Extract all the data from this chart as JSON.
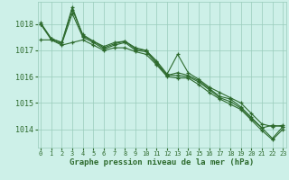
{
  "bg_color": "#cdf0e8",
  "grid_color": "#99ccbb",
  "line_color": "#2d6a2d",
  "xlabel": "Graphe pression niveau de la mer (hPa)",
  "xlabel_color": "#2d6a2d",
  "ylim": [
    1013.3,
    1018.85
  ],
  "yticks": [
    1014,
    1015,
    1016,
    1017,
    1018
  ],
  "xlim": [
    -0.3,
    23.3
  ],
  "xticks": [
    0,
    1,
    2,
    3,
    4,
    5,
    6,
    7,
    8,
    9,
    10,
    11,
    12,
    13,
    14,
    15,
    16,
    17,
    18,
    19,
    20,
    21,
    22,
    23
  ],
  "series": [
    [
      1018.0,
      1017.45,
      1017.3,
      1018.65,
      1017.55,
      1017.35,
      1017.1,
      1017.25,
      1017.35,
      1017.05,
      1017.0,
      1016.55,
      1016.05,
      1016.15,
      1016.05,
      1015.85,
      1015.55,
      1015.25,
      1015.15,
      1014.85,
      1014.45,
      1014.05,
      1014.15,
      1014.1
    ],
    [
      1018.05,
      1017.45,
      1017.3,
      1018.55,
      1017.6,
      1017.35,
      1017.15,
      1017.3,
      1017.35,
      1017.1,
      1017.0,
      1016.6,
      1016.1,
      1016.85,
      1016.15,
      1015.9,
      1015.6,
      1015.4,
      1015.2,
      1015.0,
      1014.6,
      1014.2,
      1014.1,
      1014.15
    ],
    [
      1018.0,
      1017.4,
      1017.25,
      1018.4,
      1017.5,
      1017.3,
      1017.05,
      1017.2,
      1017.3,
      1017.0,
      1016.95,
      1016.5,
      1016.05,
      1016.05,
      1016.0,
      1015.8,
      1015.5,
      1015.2,
      1015.05,
      1014.8,
      1014.4,
      1014.05,
      1013.65,
      1014.1
    ],
    [
      1017.4,
      1017.4,
      1017.2,
      1017.3,
      1017.4,
      1017.2,
      1017.0,
      1017.1,
      1017.1,
      1016.95,
      1016.85,
      1016.45,
      1016.0,
      1015.95,
      1015.95,
      1015.7,
      1015.4,
      1015.15,
      1014.95,
      1014.75,
      1014.35,
      1013.95,
      1013.6,
      1014.0
    ]
  ]
}
